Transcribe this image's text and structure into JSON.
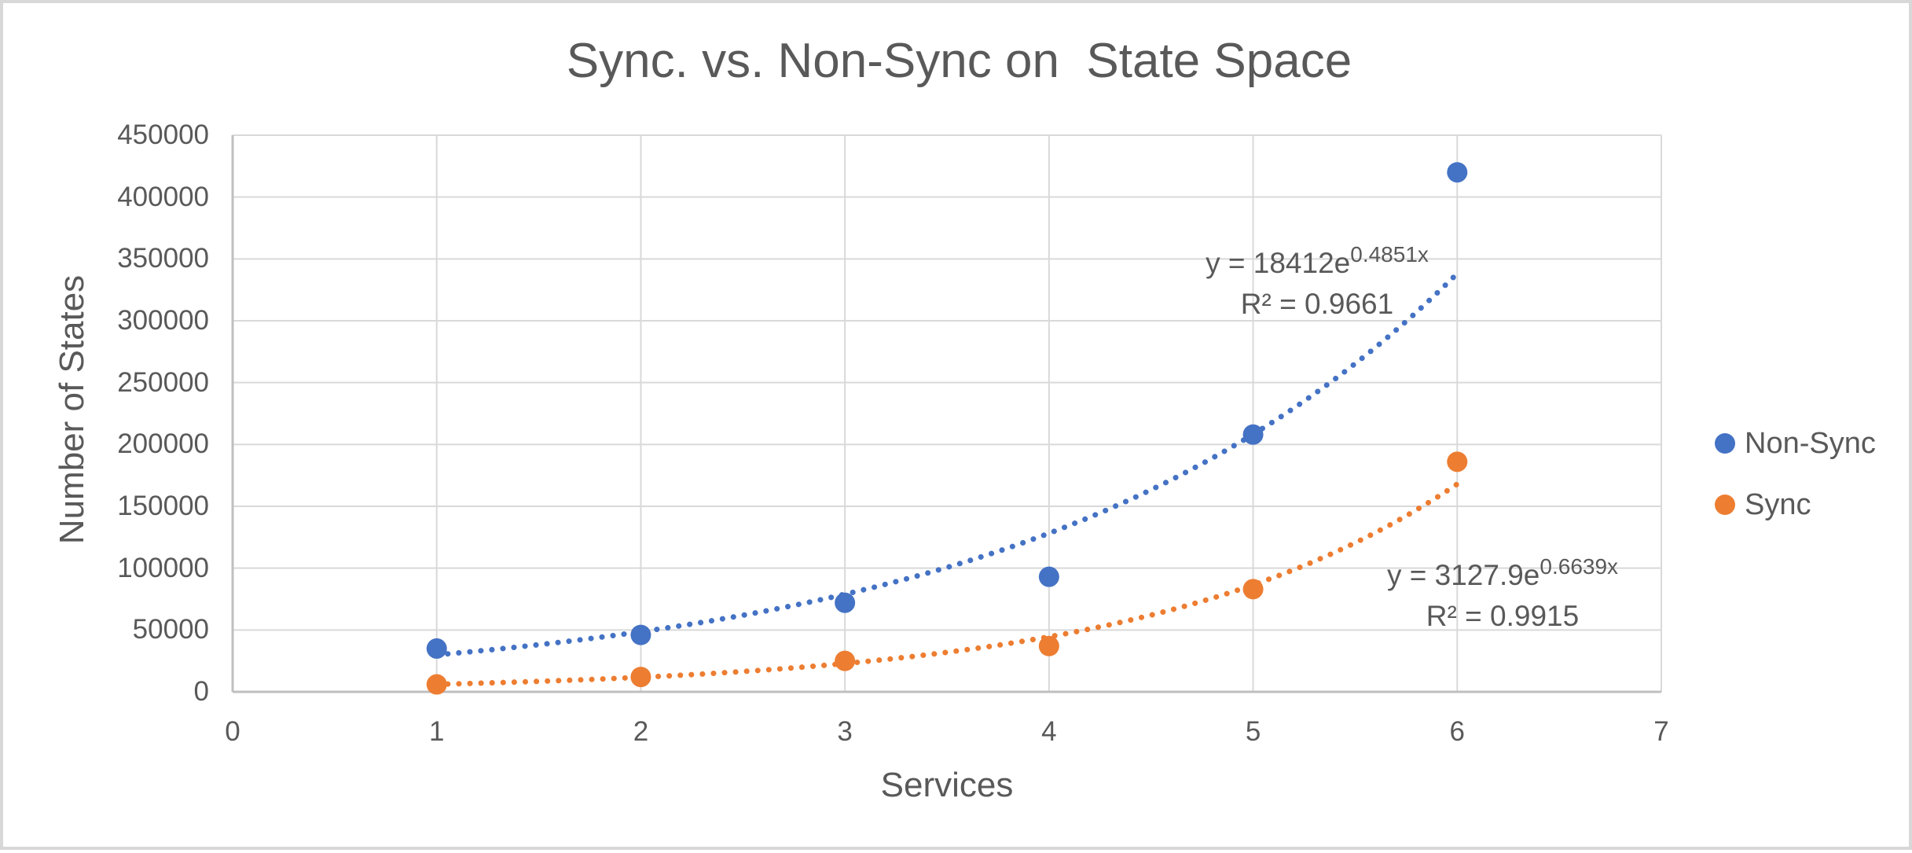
{
  "title": "Sync. vs. Non-Sync on  State Space",
  "chart_data": {
    "type": "scatter",
    "title": "Sync. vs. Non-Sync on  State Space",
    "xlabel": "Services",
    "ylabel": "Number of States",
    "xlim": [
      0,
      7
    ],
    "ylim": [
      0,
      450000
    ],
    "x_ticks": [
      0,
      1,
      2,
      3,
      4,
      5,
      6,
      7
    ],
    "y_ticks": [
      0,
      50000,
      100000,
      150000,
      200000,
      250000,
      300000,
      350000,
      400000,
      450000
    ],
    "grid": true,
    "legend_position": "right",
    "x": [
      1,
      2,
      3,
      4,
      5,
      6
    ],
    "series": [
      {
        "name": "Non-Sync",
        "color": "#4472C4",
        "values": [
          35000,
          46000,
          72000,
          93000,
          208000,
          420000
        ],
        "trendline": {
          "type": "exponential",
          "a": 18412,
          "b": 0.4851,
          "equation_base": "y = 18412e",
          "equation_exponent": "0.4851x",
          "r_squared_label": "R² = 0.9661"
        }
      },
      {
        "name": "Sync",
        "color": "#ED7D31",
        "values": [
          6000,
          12000,
          25000,
          37000,
          83000,
          186000
        ],
        "trendline": {
          "type": "exponential",
          "a": 3127.9,
          "b": 0.6639,
          "equation_base": "y = 3127.9e",
          "equation_exponent": "0.6639x",
          "r_squared_label": "R² = 0.9915"
        }
      }
    ]
  },
  "legend": {
    "items": [
      {
        "label": "Non-Sync",
        "color": "#4472C4"
      },
      {
        "label": "Sync",
        "color": "#ED7D31"
      }
    ]
  },
  "style_colors": {
    "text": "#595959",
    "gridline": "#D9D9D9",
    "axis_line": "#BFBFBF",
    "frame_border": "#D8D8D8"
  }
}
